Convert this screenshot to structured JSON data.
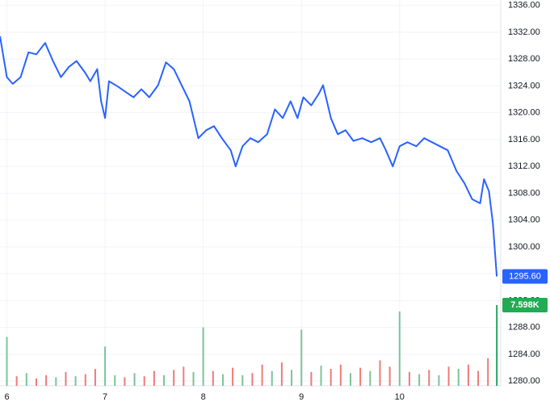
{
  "chart_data": {
    "type": "line",
    "xlim": [
      5.93,
      11.03
    ],
    "xticks": [
      6,
      7,
      8,
      9,
      10
    ],
    "ylim": [
      1279.3,
      1336.8
    ],
    "yticks": [
      {
        "value": 1280,
        "label": "1280.00"
      },
      {
        "value": 1284,
        "label": "1284.00"
      },
      {
        "value": 1288,
        "label": "1288.00"
      },
      {
        "value": 1292,
        "label": "1292.00"
      },
      {
        "value": 1296,
        "label": "1296.00"
      },
      {
        "value": 1300,
        "label": "1300.00"
      },
      {
        "value": 1304,
        "label": "1304.00"
      },
      {
        "value": 1308,
        "label": "1308.00"
      },
      {
        "value": 1312,
        "label": "1312.00"
      },
      {
        "value": 1316,
        "label": "1316.00"
      },
      {
        "value": 1320,
        "label": "1320.00"
      },
      {
        "value": 1324,
        "label": "1324.00"
      },
      {
        "value": 1328,
        "label": "1328.00"
      },
      {
        "value": 1332,
        "label": "1332.00"
      },
      {
        "value": 1336,
        "label": "1336.00"
      }
    ],
    "grid": true,
    "series": [
      {
        "color": "#2962ff",
        "x": [
          5.93,
          6.0,
          6.06,
          6.14,
          6.22,
          6.3,
          6.39,
          6.47,
          6.55,
          6.63,
          6.71,
          6.8,
          6.85,
          6.92,
          6.96,
          7.0,
          7.04,
          7.13,
          7.21,
          7.29,
          7.37,
          7.45,
          7.54,
          7.62,
          7.7,
          7.78,
          7.86,
          7.95,
          8.03,
          8.11,
          8.19,
          8.28,
          8.33,
          8.4,
          8.48,
          8.56,
          8.65,
          8.73,
          8.81,
          8.89,
          8.96,
          9.02,
          9.1,
          9.18,
          9.22,
          9.26,
          9.3,
          9.37,
          9.45,
          9.53,
          9.62,
          9.71,
          9.8,
          9.86,
          9.93,
          10.0,
          10.08,
          10.17,
          10.25,
          10.33,
          10.41,
          10.49,
          10.58,
          10.66,
          10.74,
          10.82,
          10.86,
          10.91,
          10.95,
          10.99
        ],
        "values": [
          1331.4,
          1325.3,
          1324.3,
          1325.3,
          1329.0,
          1328.7,
          1330.4,
          1327.7,
          1325.3,
          1326.8,
          1327.7,
          1325.9,
          1324.7,
          1326.5,
          1321.7,
          1319.2,
          1324.7,
          1323.9,
          1323.1,
          1322.3,
          1323.5,
          1322.3,
          1324.1,
          1327.5,
          1326.5,
          1324.1,
          1321.7,
          1316.2,
          1317.4,
          1318.0,
          1316.2,
          1314.4,
          1312.0,
          1315.0,
          1316.2,
          1315.6,
          1316.8,
          1320.5,
          1319.2,
          1321.7,
          1319.2,
          1322.3,
          1321.1,
          1322.9,
          1324.1,
          1321.7,
          1319.2,
          1316.8,
          1317.4,
          1315.8,
          1316.2,
          1315.6,
          1316.2,
          1314.4,
          1312.0,
          1315.0,
          1315.6,
          1315.0,
          1316.2,
          1315.6,
          1315.0,
          1314.4,
          1311.3,
          1309.5,
          1307.1,
          1306.5,
          1310.1,
          1308.3,
          1303.5,
          1295.6
        ],
        "value_labels": [
          null,
          null,
          null,
          null,
          null,
          null,
          null,
          null,
          null,
          null,
          null,
          null,
          null,
          null,
          null,
          null,
          null,
          null,
          null,
          null,
          null,
          null,
          null,
          null,
          null,
          null,
          null,
          null,
          null,
          null,
          null,
          null,
          null,
          null,
          null,
          null,
          null,
          null,
          null,
          null,
          null,
          null,
          null,
          null,
          null,
          null,
          null,
          null,
          null,
          null,
          null,
          null,
          null,
          null,
          null,
          null,
          null,
          null,
          null,
          null,
          null,
          null,
          null,
          null,
          null,
          null,
          null,
          null,
          null,
          "1295.60"
        ]
      }
    ],
    "volume": {
      "x": [
        6.0,
        6.1,
        6.2,
        6.3,
        6.4,
        6.5,
        6.6,
        6.7,
        6.8,
        6.9,
        7.0,
        7.1,
        7.2,
        7.3,
        7.4,
        7.5,
        7.6,
        7.7,
        7.8,
        7.9,
        8.0,
        8.1,
        8.2,
        8.3,
        8.4,
        8.5,
        8.6,
        8.7,
        8.8,
        8.9,
        9.0,
        9.1,
        9.2,
        9.3,
        9.4,
        9.5,
        9.6,
        9.7,
        9.8,
        9.9,
        10.0,
        10.1,
        10.2,
        10.3,
        10.4,
        10.5,
        10.6,
        10.7,
        10.8,
        10.9,
        10.99
      ],
      "values": [
        4600,
        900,
        1200,
        700,
        1000,
        800,
        1300,
        900,
        1100,
        1600,
        3700,
        1000,
        800,
        1200,
        900,
        1400,
        1000,
        1500,
        1800,
        1300,
        5500,
        1400,
        1100,
        1700,
        1000,
        1200,
        2000,
        1400,
        2200,
        1500,
        5300,
        1300,
        1900,
        1600,
        2000,
        1200,
        1700,
        1400,
        2400,
        1800,
        7000,
        1300,
        1100,
        1500,
        1000,
        1800,
        1600,
        2000,
        1400,
        2600,
        7598
      ],
      "colors": [
        "#7cc49a",
        "#ef7b78",
        "#7cc49a",
        "#ef7b78",
        "#ef7b78",
        "#7cc49a",
        "#ef7b78",
        "#7cc49a",
        "#ef7b78",
        "#ef7b78",
        "#7cc49a",
        "#7cc49a",
        "#ef7b78",
        "#7cc49a",
        "#ef7b78",
        "#ef7b78",
        "#7cc49a",
        "#ef7b78",
        "#ef7b78",
        "#7cc49a",
        "#7cc49a",
        "#ef7b78",
        "#7cc49a",
        "#ef7b78",
        "#7cc49a",
        "#ef7b78",
        "#ef7b78",
        "#7cc49a",
        "#ef7b78",
        "#7cc49a",
        "#7cc49a",
        "#ef7b78",
        "#7cc49a",
        "#ef7b78",
        "#ef7b78",
        "#7cc49a",
        "#ef7b78",
        "#7cc49a",
        "#ef7b78",
        "#ef7b78",
        "#7cc49a",
        "#ef7b78",
        "#7cc49a",
        "#ef7b78",
        "#7cc49a",
        "#ef7b78",
        "#7cc49a",
        "#ef7b78",
        "#ef7b78",
        "#ef7b78",
        "#26a65b"
      ],
      "value_labels": [
        null,
        null,
        null,
        null,
        null,
        null,
        null,
        null,
        null,
        null,
        null,
        null,
        null,
        null,
        null,
        null,
        null,
        null,
        null,
        null,
        null,
        null,
        null,
        null,
        null,
        null,
        null,
        null,
        null,
        null,
        null,
        null,
        null,
        null,
        null,
        null,
        null,
        null,
        null,
        null,
        null,
        null,
        null,
        null,
        null,
        null,
        null,
        null,
        null,
        null,
        "7.598K"
      ]
    }
  }
}
